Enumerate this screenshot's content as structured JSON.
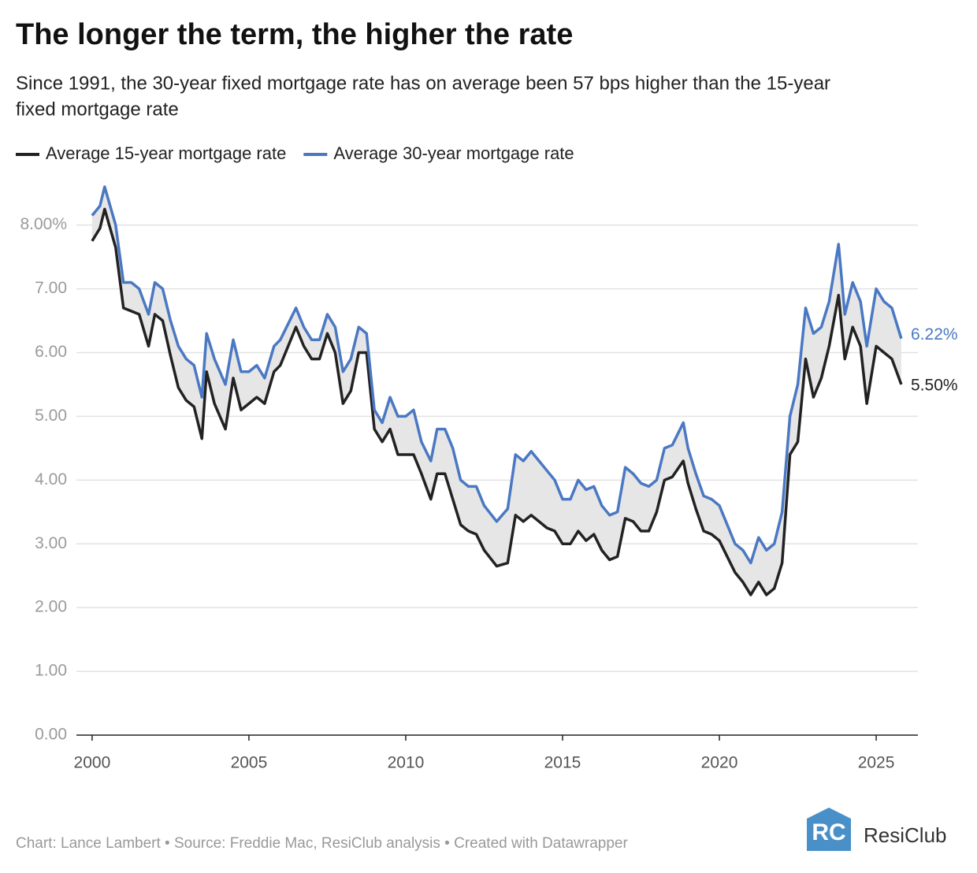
{
  "chart_data": {
    "type": "line",
    "title": "The longer the term, the higher the rate",
    "subtitle": [
      "Since 1991, the 30-year fixed mortgage rate has on average been 57 bps higher than the 15-year",
      "fixed mortgage rate"
    ],
    "x": [
      2000.0,
      2000.25,
      2000.4,
      2000.75,
      2001.0,
      2001.25,
      2001.5,
      2001.8,
      2002.0,
      2002.25,
      2002.5,
      2002.75,
      2003.0,
      2003.25,
      2003.5,
      2003.65,
      2003.9,
      2004.25,
      2004.5,
      2004.75,
      2005.0,
      2005.25,
      2005.5,
      2005.8,
      2006.0,
      2006.5,
      2006.75,
      2007.0,
      2007.25,
      2007.5,
      2007.75,
      2008.0,
      2008.25,
      2008.5,
      2008.75,
      2009.0,
      2009.25,
      2009.5,
      2009.75,
      2010.0,
      2010.25,
      2010.5,
      2010.8,
      2011.0,
      2011.25,
      2011.5,
      2011.75,
      2012.0,
      2012.25,
      2012.5,
      2012.9,
      2013.25,
      2013.5,
      2013.75,
      2014.0,
      2014.25,
      2014.5,
      2014.75,
      2015.0,
      2015.25,
      2015.5,
      2015.75,
      2016.0,
      2016.25,
      2016.5,
      2016.75,
      2017.0,
      2017.25,
      2017.5,
      2017.75,
      2018.0,
      2018.25,
      2018.5,
      2018.85,
      2019.0,
      2019.25,
      2019.5,
      2019.75,
      2020.0,
      2020.25,
      2020.5,
      2020.75,
      2021.0,
      2021.25,
      2021.5,
      2021.75,
      2022.0,
      2022.25,
      2022.5,
      2022.75,
      2023.0,
      2023.25,
      2023.5,
      2023.8,
      2024.0,
      2024.25,
      2024.5,
      2024.7,
      2025.0,
      2025.25,
      2025.5,
      2025.8
    ],
    "series": [
      {
        "name": "Average 15-year mortgage rate",
        "color": "#222222",
        "values": [
          7.75,
          7.95,
          8.25,
          7.65,
          6.7,
          6.65,
          6.6,
          6.1,
          6.6,
          6.5,
          5.95,
          5.45,
          5.25,
          5.15,
          4.65,
          5.7,
          5.2,
          4.8,
          5.6,
          5.1,
          5.2,
          5.3,
          5.2,
          5.7,
          5.8,
          6.4,
          6.1,
          5.9,
          5.9,
          6.3,
          6.0,
          5.2,
          5.4,
          6.0,
          6.0,
          4.8,
          4.6,
          4.8,
          4.4,
          4.4,
          4.4,
          4.1,
          3.7,
          4.1,
          4.1,
          3.7,
          3.3,
          3.2,
          3.15,
          2.9,
          2.65,
          2.7,
          3.45,
          3.35,
          3.45,
          3.35,
          3.25,
          3.2,
          3.0,
          3.0,
          3.2,
          3.05,
          3.15,
          2.9,
          2.75,
          2.8,
          3.4,
          3.35,
          3.2,
          3.2,
          3.5,
          4.0,
          4.05,
          4.3,
          3.95,
          3.55,
          3.2,
          3.15,
          3.05,
          2.8,
          2.55,
          2.4,
          2.2,
          2.4,
          2.2,
          2.3,
          2.7,
          4.4,
          4.6,
          5.9,
          5.3,
          5.6,
          6.1,
          6.9,
          5.9,
          6.4,
          6.1,
          5.2,
          6.1,
          6.0,
          5.9,
          5.5
        ]
      },
      {
        "name": "Average 30-year mortgage rate",
        "color": "#4a78c2",
        "values": [
          8.15,
          8.3,
          8.6,
          8.0,
          7.1,
          7.1,
          7.0,
          6.6,
          7.1,
          7.0,
          6.5,
          6.1,
          5.9,
          5.8,
          5.3,
          6.3,
          5.9,
          5.5,
          6.2,
          5.7,
          5.7,
          5.8,
          5.6,
          6.1,
          6.2,
          6.7,
          6.4,
          6.2,
          6.2,
          6.6,
          6.4,
          5.7,
          5.9,
          6.4,
          6.3,
          5.1,
          4.9,
          5.3,
          5.0,
          5.0,
          5.1,
          4.6,
          4.3,
          4.8,
          4.8,
          4.5,
          4.0,
          3.9,
          3.9,
          3.6,
          3.35,
          3.55,
          4.4,
          4.3,
          4.45,
          4.3,
          4.15,
          4.0,
          3.7,
          3.7,
          4.0,
          3.85,
          3.9,
          3.6,
          3.45,
          3.5,
          4.2,
          4.1,
          3.95,
          3.9,
          4.0,
          4.5,
          4.55,
          4.9,
          4.5,
          4.1,
          3.75,
          3.7,
          3.6,
          3.3,
          3.0,
          2.9,
          2.7,
          3.1,
          2.9,
          3.0,
          3.5,
          5.0,
          5.5,
          6.7,
          6.3,
          6.4,
          6.8,
          7.7,
          6.6,
          7.1,
          6.8,
          6.1,
          7.0,
          6.8,
          6.7,
          6.22
        ]
      }
    ],
    "annotations": [
      "5.50%",
      "6.22%"
    ],
    "xlim": [
      1999.5,
      2026.33
    ],
    "xticks": [
      2000,
      2005,
      2010,
      2015,
      2020,
      2025
    ],
    "ylim": [
      0,
      8.7
    ],
    "yticks": [
      {
        "value": 0,
        "label": "0.00"
      },
      {
        "value": 1,
        "label": "1.00"
      },
      {
        "value": 2,
        "label": "2.00"
      },
      {
        "value": 3,
        "label": "3.00"
      },
      {
        "value": 4,
        "label": "4.00"
      },
      {
        "value": 5,
        "label": "5.00"
      },
      {
        "value": 6,
        "label": "6.00"
      },
      {
        "value": 7,
        "label": "7.00"
      },
      {
        "value": 8,
        "label": "8.00%"
      }
    ],
    "grid": true,
    "fill_between": true,
    "footer": "Chart: Lance Lambert • Source: Freddie Mac, ResiClub analysis • Created with Datawrapper",
    "logo": "ResiClub"
  }
}
